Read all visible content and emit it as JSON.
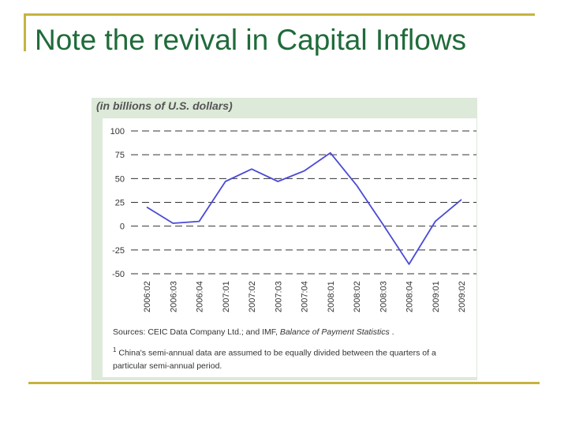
{
  "slide": {
    "title": "Note the revival in Capital Inflows"
  },
  "chart_data": {
    "type": "line",
    "units_label": "(in billions of U.S. dollars)",
    "categories": [
      "2006:02",
      "2006:03",
      "2006:04",
      "2007:01",
      "2007:02",
      "2007:03",
      "2007:04",
      "2008:01",
      "2008:02",
      "2008:03",
      "2008:04",
      "2009:01",
      "2009:02"
    ],
    "series": [
      {
        "values": [
          20,
          3,
          5,
          47,
          60,
          47,
          58,
          77,
          43,
          2,
          -40,
          5,
          28
        ]
      }
    ],
    "yticks": [
      100,
      75,
      50,
      25,
      0,
      -25,
      -50
    ],
    "ylim": [
      -50,
      100
    ],
    "grid": "dashed horizontal",
    "colors": {
      "line": "#4a4ad6",
      "grid": "#333333",
      "panel": "#dde9d9"
    }
  },
  "notes": {
    "source_prefix": "Sources: CEIC Data Company Ltd.; and IMF, ",
    "source_italic": "Balance of Payment Statistics",
    "source_suffix": " .",
    "footnote_marker": "1",
    "footnote_text": " China's semi-annual data are assumed to be equally divided between the quarters of a particular semi-annual period."
  }
}
